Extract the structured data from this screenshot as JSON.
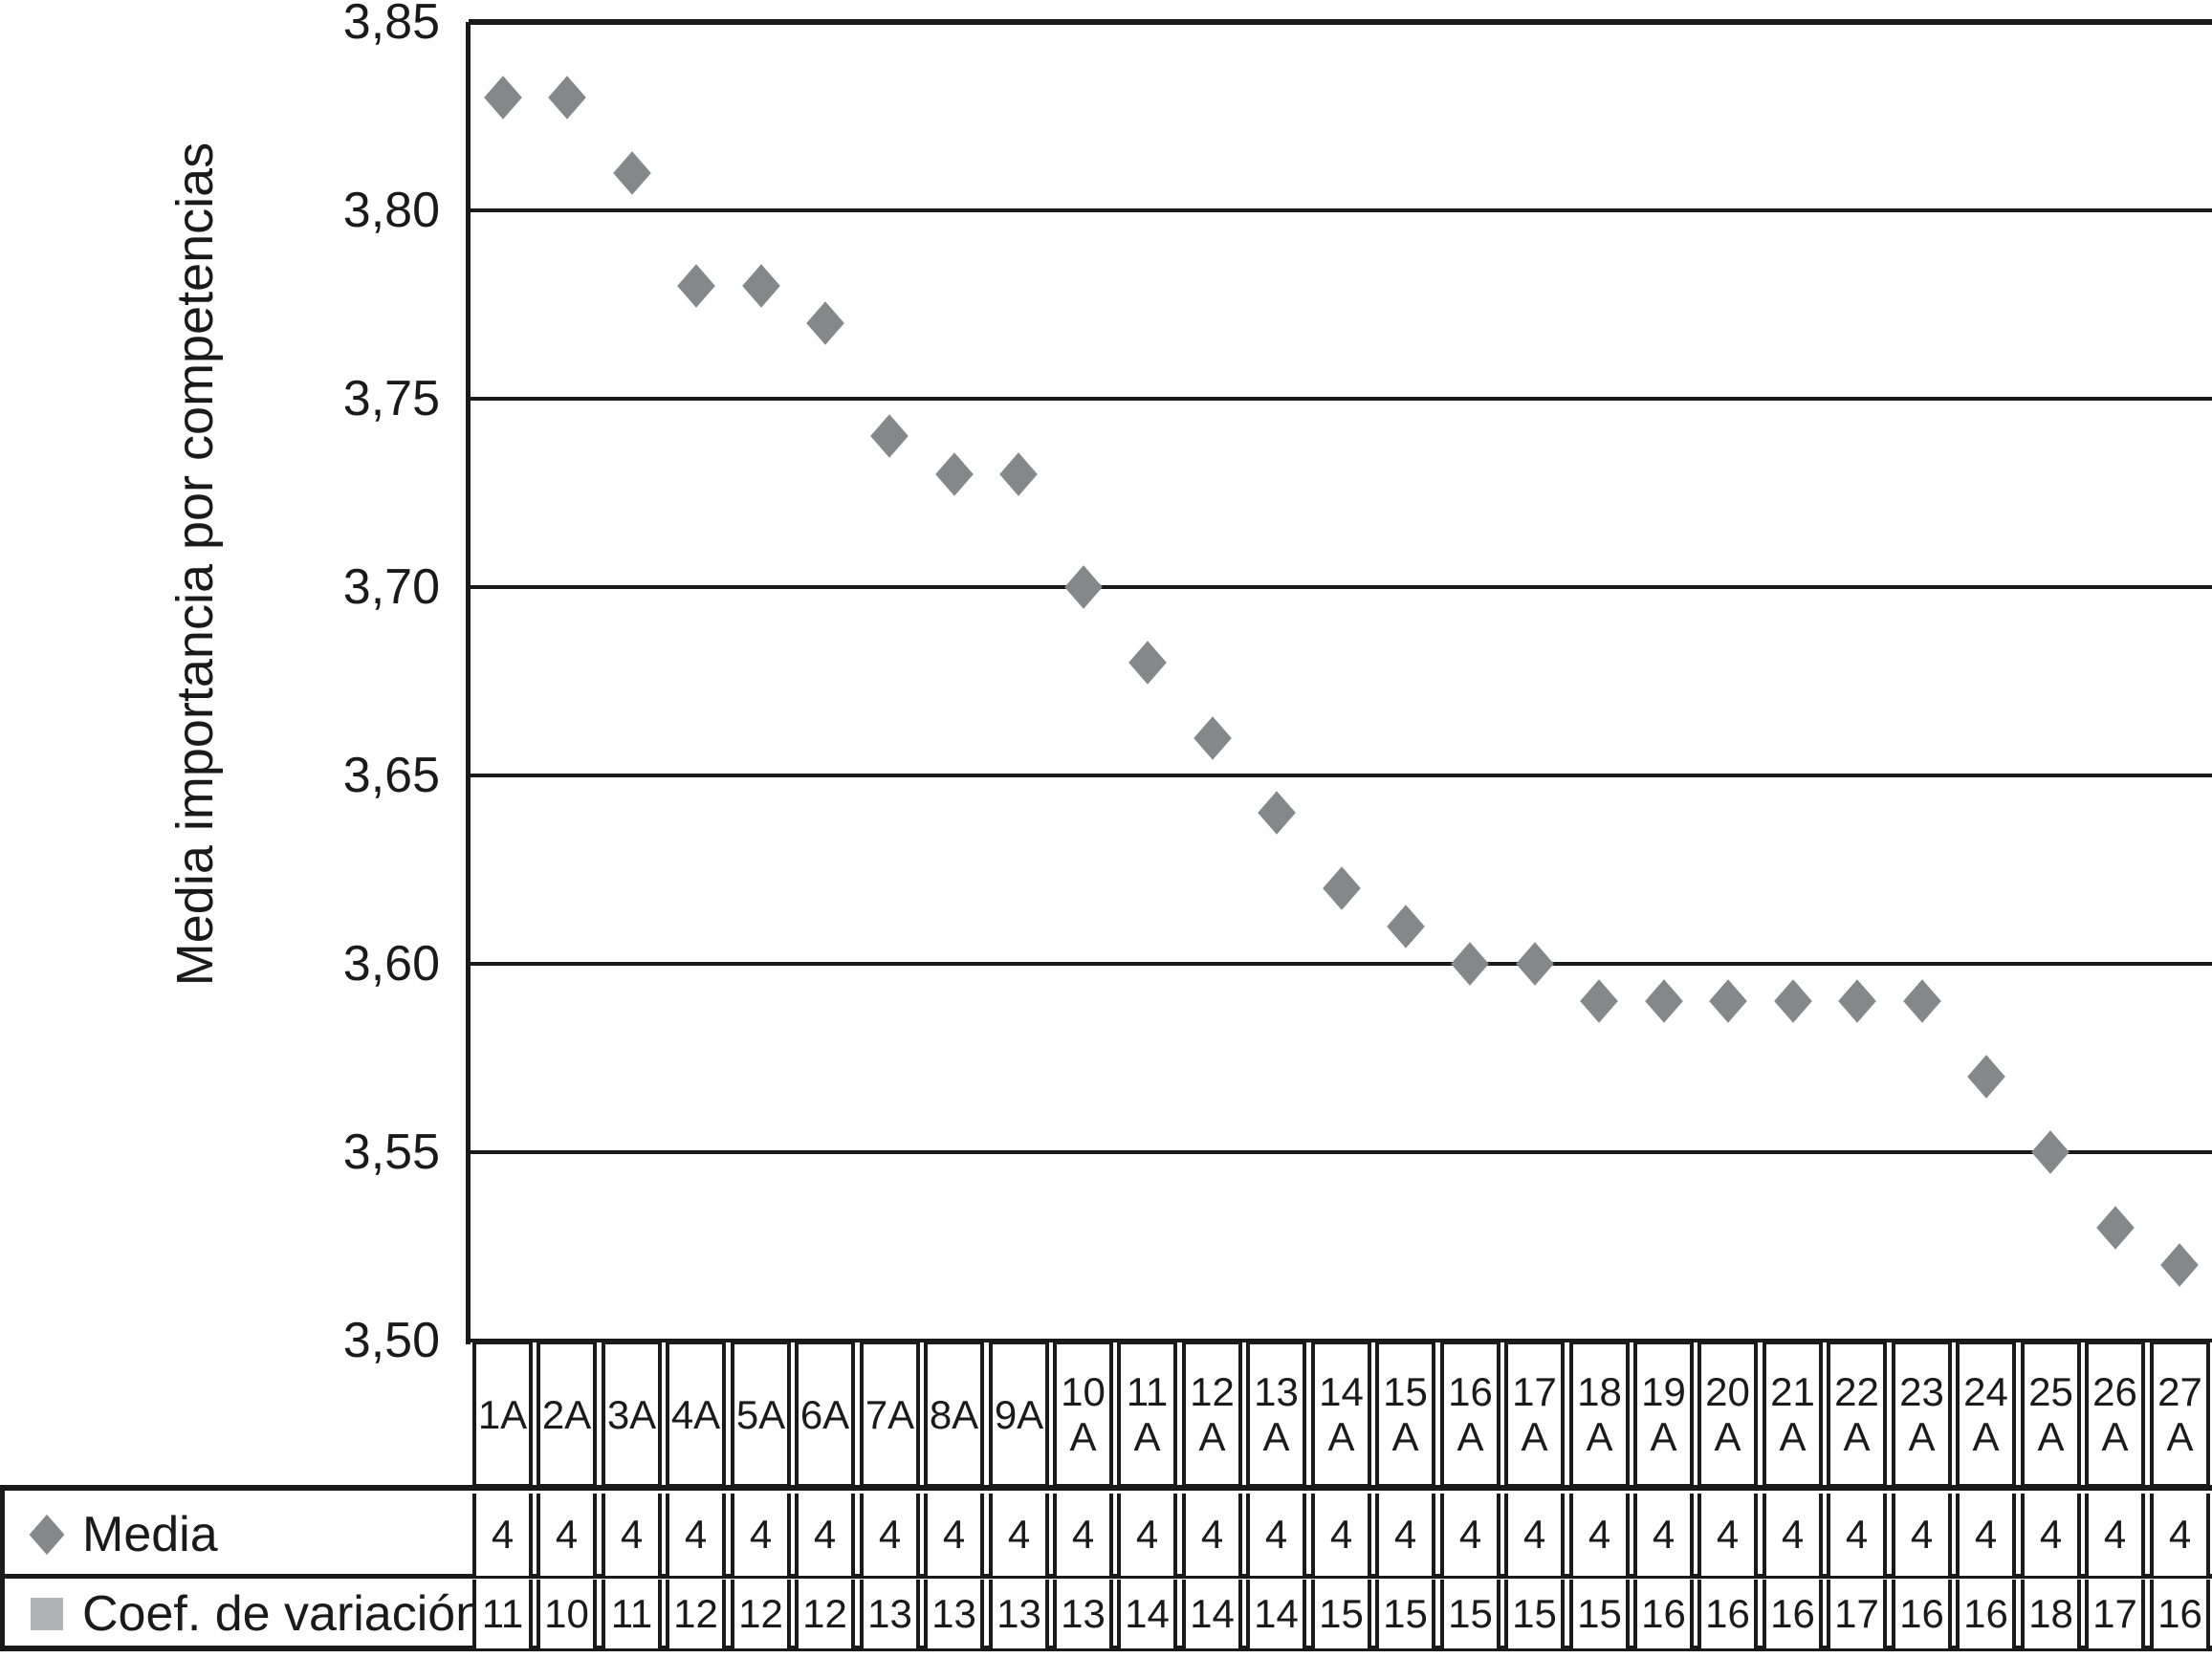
{
  "chart_data": {
    "type": "scatter",
    "title": "",
    "xlabel": "",
    "ylabel": "Media importancia por competencias",
    "categories": [
      "1A",
      "2A",
      "3A",
      "4A",
      "5A",
      "6A",
      "7A",
      "8A",
      "9A",
      "10A",
      "11A",
      "12A",
      "13A",
      "14A",
      "15A",
      "16A",
      "17A",
      "18A",
      "19A",
      "20A",
      "21A",
      "22A",
      "23A",
      "24A",
      "25A",
      "26A",
      "27A"
    ],
    "series": [
      {
        "name": "Media",
        "marker": "diamond",
        "color": "#85878a",
        "values": [
          3.83,
          3.83,
          3.81,
          3.78,
          3.78,
          3.77,
          3.74,
          3.73,
          3.73,
          3.7,
          3.68,
          3.66,
          3.64,
          3.62,
          3.61,
          3.6,
          3.6,
          3.59,
          3.59,
          3.59,
          3.59,
          3.59,
          3.59,
          3.57,
          3.55,
          3.53,
          3.52
        ]
      },
      {
        "name": "Coef. de variación",
        "marker": "square",
        "color": "#b1b3b5",
        "values": [
          11,
          10,
          11,
          12,
          12,
          12,
          13,
          13,
          13,
          13,
          14,
          14,
          14,
          15,
          15,
          15,
          15,
          15,
          16,
          16,
          16,
          17,
          16,
          16,
          18,
          17,
          16
        ]
      }
    ],
    "yaxis": {
      "min": 3.5,
      "max": 3.85,
      "step": 0.05,
      "tick_labels": [
        "3,85",
        "3,80",
        "3,75",
        "3,70",
        "3,65",
        "3,60",
        "3,55",
        "3,50"
      ]
    },
    "grid": "horizontal",
    "legend_position": "table-left"
  },
  "table": {
    "rows": [
      {
        "label": "Media",
        "marker": "diamond-icon",
        "values": [
          "4",
          "4",
          "4",
          "4",
          "4",
          "4",
          "4",
          "4",
          "4",
          "4",
          "4",
          "4",
          "4",
          "4",
          "4",
          "4",
          "4",
          "4",
          "4",
          "4",
          "4",
          "4",
          "4",
          "4",
          "4",
          "4",
          "4"
        ]
      },
      {
        "label": "Coef. de variación",
        "marker": "square-icon",
        "values": [
          "11",
          "10",
          "11",
          "12",
          "12",
          "12",
          "13",
          "13",
          "13",
          "13",
          "14",
          "14",
          "14",
          "15",
          "15",
          "15",
          "15",
          "15",
          "16",
          "16",
          "16",
          "17",
          "16",
          "16",
          "18",
          "17",
          "16"
        ]
      }
    ]
  }
}
